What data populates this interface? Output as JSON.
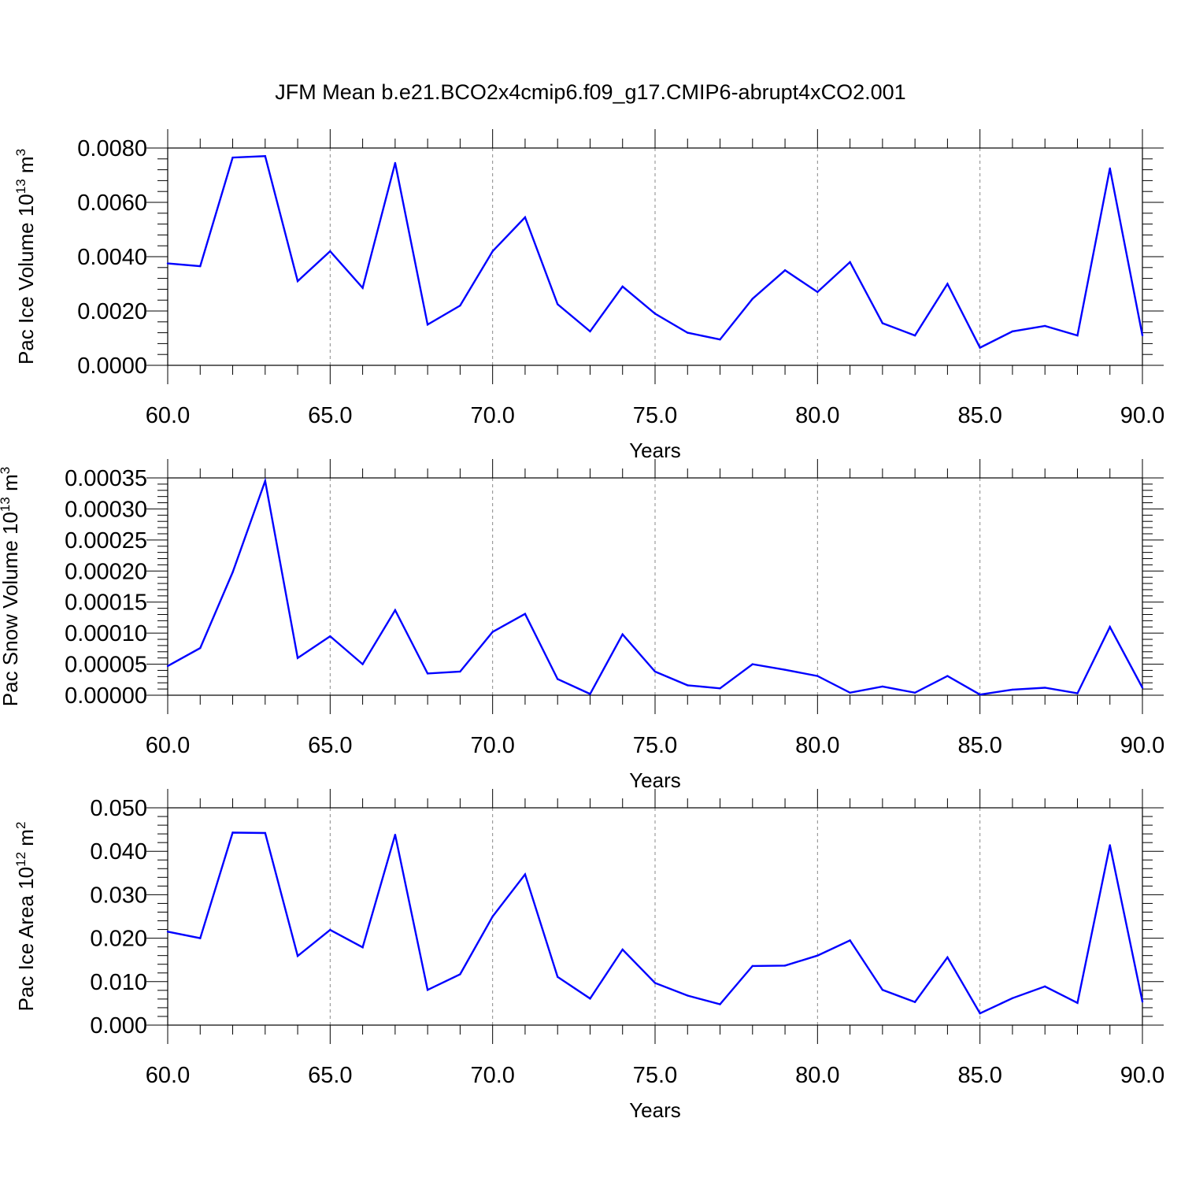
{
  "figure": {
    "title": "JFM Mean b.e21.BCO2x4cmip6.f09_g17.CMIP6-abrupt4xCO2.001"
  },
  "colors": {
    "line": "#0000ff",
    "axis": "#000000",
    "grid": "#888888"
  },
  "chart_data": [
    {
      "type": "line",
      "id": "ice-volume",
      "xlabel": "Years",
      "ylabel": {
        "prefix": "Pac Ice Volume 10",
        "exp": "13",
        "unit": " m",
        "unit_exp": "3"
      },
      "xlim": [
        60,
        90
      ],
      "ylim": [
        0,
        0.008
      ],
      "xticks": [
        60,
        65,
        70,
        75,
        80,
        85,
        90
      ],
      "xtick_labels": [
        "60.0",
        "65.0",
        "70.0",
        "75.0",
        "80.0",
        "85.0",
        "90.0"
      ],
      "yticks": [
        0,
        0.002,
        0.004,
        0.006,
        0.008
      ],
      "ytick_labels": [
        "0.0000",
        "0.0020",
        "0.0040",
        "0.0060",
        "0.0080"
      ],
      "grid": "vertical dashed at major x ticks",
      "x": [
        60,
        61,
        62,
        63,
        64,
        65,
        66,
        67,
        68,
        69,
        70,
        71,
        72,
        73,
        74,
        75,
        76,
        77,
        78,
        79,
        80,
        81,
        82,
        83,
        84,
        85,
        86,
        87,
        88,
        89,
        90
      ],
      "series": [
        {
          "values": [
            0.00375,
            0.00365,
            0.00765,
            0.0077,
            0.0031,
            0.0042,
            0.00285,
            0.00745,
            0.0015,
            0.0022,
            0.0042,
            0.00545,
            0.00225,
            0.00125,
            0.0029,
            0.0019,
            0.0012,
            0.00095,
            0.00245,
            0.0035,
            0.0027,
            0.0038,
            0.00155,
            0.0011,
            0.003,
            0.00065,
            0.00125,
            0.00145,
            0.0011,
            0.00725,
            0.0011
          ]
        }
      ]
    },
    {
      "type": "line",
      "id": "snow-volume",
      "xlabel": "Years",
      "ylabel": {
        "prefix": "Pac Snow Volume 10",
        "exp": "13",
        "unit": " m",
        "unit_exp": "3"
      },
      "xlim": [
        60,
        90
      ],
      "ylim": [
        0,
        0.00035
      ],
      "xticks": [
        60,
        65,
        70,
        75,
        80,
        85,
        90
      ],
      "xtick_labels": [
        "60.0",
        "65.0",
        "70.0",
        "75.0",
        "80.0",
        "85.0",
        "90.0"
      ],
      "yticks": [
        0,
        5e-05,
        0.0001,
        0.00015,
        0.0002,
        0.00025,
        0.0003,
        0.00035
      ],
      "ytick_labels": [
        "0.00000",
        "0.00005",
        "0.00010",
        "0.00015",
        "0.00020",
        "0.00025",
        "0.00030",
        "0.00035"
      ],
      "grid": "vertical dashed at major x ticks",
      "x": [
        60,
        61,
        62,
        63,
        64,
        65,
        66,
        67,
        68,
        69,
        70,
        71,
        72,
        73,
        74,
        75,
        76,
        77,
        78,
        79,
        80,
        81,
        82,
        83,
        84,
        85,
        86,
        87,
        88,
        89,
        90
      ],
      "series": [
        {
          "values": [
            4.7e-05,
            7.6e-05,
            0.000198,
            0.000345,
            6e-05,
            9.5e-05,
            5e-05,
            0.000137,
            3.5e-05,
            3.8e-05,
            0.000102,
            0.000131,
            2.6e-05,
            2e-06,
            9.8e-05,
            3.8e-05,
            1.6e-05,
            1.1e-05,
            5e-05,
            4.1e-05,
            3.1e-05,
            4e-06,
            1.4e-05,
            4e-06,
            3.1e-05,
            1e-06,
            9e-06,
            1.2e-05,
            3e-06,
            0.00011,
            1.2e-05
          ]
        }
      ]
    },
    {
      "type": "line",
      "id": "ice-area",
      "xlabel": "Years",
      "ylabel": {
        "prefix": "Pac Ice Area 10",
        "exp": "12",
        "unit": " m",
        "unit_exp": "2"
      },
      "xlim": [
        60,
        90
      ],
      "ylim": [
        0,
        0.05
      ],
      "xticks": [
        60,
        65,
        70,
        75,
        80,
        85,
        90
      ],
      "xtick_labels": [
        "60.0",
        "65.0",
        "70.0",
        "75.0",
        "80.0",
        "85.0",
        "90.0"
      ],
      "yticks": [
        0,
        0.01,
        0.02,
        0.03,
        0.04,
        0.05
      ],
      "ytick_labels": [
        "0.000",
        "0.010",
        "0.020",
        "0.030",
        "0.040",
        "0.050"
      ],
      "grid": "vertical dashed at major x ticks",
      "x": [
        60,
        61,
        62,
        63,
        64,
        65,
        66,
        67,
        68,
        69,
        70,
        71,
        72,
        73,
        74,
        75,
        76,
        77,
        78,
        79,
        80,
        81,
        82,
        83,
        84,
        85,
        86,
        87,
        88,
        89,
        90
      ],
      "series": [
        {
          "values": [
            0.0215,
            0.02,
            0.0443,
            0.0442,
            0.0159,
            0.0219,
            0.0179,
            0.0438,
            0.0081,
            0.0117,
            0.025,
            0.0347,
            0.0111,
            0.0061,
            0.0174,
            0.0097,
            0.0068,
            0.0048,
            0.0136,
            0.0137,
            0.016,
            0.0195,
            0.0081,
            0.0053,
            0.0156,
            0.0027,
            0.0062,
            0.0089,
            0.0051,
            0.0414,
            0.0054
          ]
        }
      ]
    }
  ]
}
